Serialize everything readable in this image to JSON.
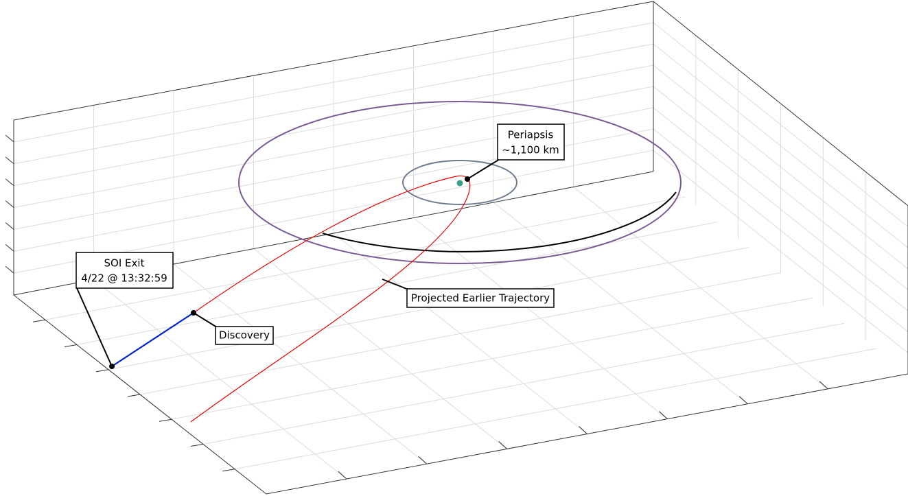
{
  "annotations": {
    "periapsis": [
      "Periapsis",
      "~1,100 km"
    ],
    "soi_exit": [
      "SOI Exit",
      "4/22 @ 13:32:59"
    ],
    "discovery": "Discovery",
    "projected": "Projected Earlier Trajectory"
  }
}
